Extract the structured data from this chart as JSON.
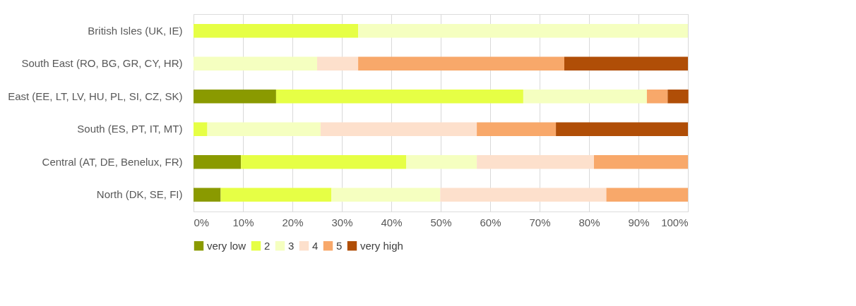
{
  "chart_data": {
    "type": "bar",
    "orientation": "horizontal",
    "stacked": true,
    "categories": [
      "British Isles (UK, IE)",
      "South East (RO, BG, GR, CY, HR)",
      "East (EE, LT, LV, HU, PL, SI, CZ, SK)",
      "South (ES, PT, IT, MT)",
      "Central (AT, DE, Benelux, FR)",
      "North (DK, SE, FI)"
    ],
    "series": [
      {
        "name": "very low",
        "color": "#8a9a00",
        "values": [
          0,
          0,
          16.7,
          0,
          9.6,
          5.5
        ]
      },
      {
        "name": "2",
        "color": "#e6ff45",
        "values": [
          33.3,
          0,
          50,
          2.8,
          33.4,
          22.4
        ]
      },
      {
        "name": "3",
        "color": "#f5ffc0",
        "values": [
          66.7,
          25,
          25,
          22.9,
          14.3,
          22
        ]
      },
      {
        "name": "4",
        "color": "#fde0cc",
        "values": [
          0,
          8.3,
          0,
          31.6,
          23.7,
          33.6
        ]
      },
      {
        "name": "5",
        "color": "#f8a86a",
        "values": [
          0,
          41.7,
          4.2,
          16,
          19,
          16.5
        ]
      },
      {
        "name": "very high",
        "color": "#b04e07",
        "values": [
          0,
          25,
          4.2,
          26.7,
          0,
          0
        ]
      }
    ],
    "xlim": [
      0,
      100
    ],
    "xticks": [
      {
        "value": 0,
        "label": "0%"
      },
      {
        "value": 10,
        "label": "10%"
      },
      {
        "value": 20,
        "label": "20%"
      },
      {
        "value": 30,
        "label": "30%"
      },
      {
        "value": 40,
        "label": "40%"
      },
      {
        "value": 50,
        "label": "50%"
      },
      {
        "value": 60,
        "label": "60%"
      },
      {
        "value": 70,
        "label": "70%"
      },
      {
        "value": 80,
        "label": "80%"
      },
      {
        "value": 90,
        "label": "90%"
      },
      {
        "value": 100,
        "label": "100%"
      }
    ],
    "grid": "x",
    "legend": "bottom"
  }
}
